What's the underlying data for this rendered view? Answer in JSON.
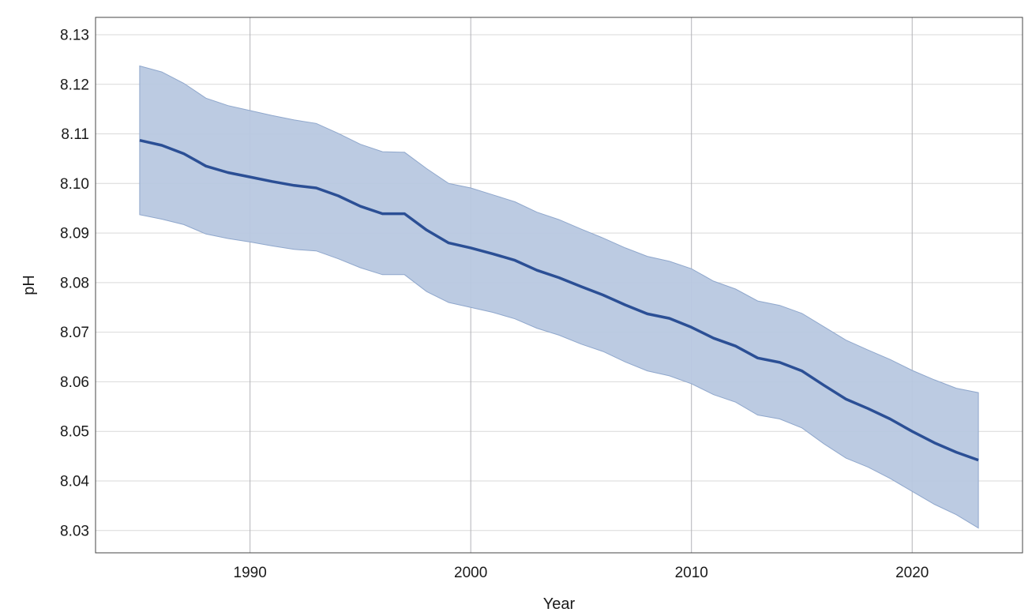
{
  "chart_data": {
    "type": "area",
    "title": "",
    "xlabel": "Year",
    "ylabel": "pH",
    "xlim": [
      1983,
      2025
    ],
    "ylim": [
      8.0255,
      8.1335
    ],
    "xticks": [
      1990,
      2000,
      2010,
      2020
    ],
    "yticks": [
      8.03,
      8.04,
      8.05,
      8.06,
      8.07,
      8.08,
      8.09,
      8.1,
      8.11,
      8.12,
      8.13
    ],
    "ytick_labels": [
      "8.03",
      "8.04",
      "8.05",
      "8.06",
      "8.07",
      "8.08",
      "8.09",
      "8.10",
      "8.11",
      "8.12",
      "8.13"
    ],
    "grid": true,
    "legend": "none",
    "colors": {
      "line": "#2b4f95",
      "band": "#b8c8e0",
      "band_edge": "#8fa7cc",
      "grid": "#d9d9d9",
      "vgrid": "#b3b3b8",
      "frame": "#444444"
    },
    "x": [
      1985,
      1986,
      1987,
      1988,
      1989,
      1990,
      1991,
      1992,
      1993,
      1994,
      1995,
      1996,
      1997,
      1998,
      1999,
      2000,
      2001,
      2002,
      2003,
      2004,
      2005,
      2006,
      2007,
      2008,
      2009,
      2010,
      2011,
      2012,
      2013,
      2014,
      2015,
      2016,
      2017,
      2018,
      2019,
      2020,
      2021,
      2022,
      2023
    ],
    "series": [
      {
        "values": [
          8.1087,
          8.1077,
          8.106,
          8.1035,
          8.1022,
          8.1013,
          8.1004,
          8.0996,
          8.0991,
          8.0975,
          8.0954,
          8.0939,
          8.0939,
          8.0906,
          8.088,
          8.087,
          8.0858,
          8.0845,
          8.0825,
          8.081,
          8.0792,
          8.0775,
          8.0755,
          8.0737,
          8.0728,
          8.071,
          8.0688,
          8.0672,
          8.0648,
          8.0639,
          8.0622,
          8.0593,
          8.0565,
          8.0546,
          8.0525,
          8.05,
          8.0477,
          8.0458,
          8.0442
        ],
        "lower": [
          8.0937,
          8.0928,
          8.0917,
          8.0898,
          8.0889,
          8.0882,
          8.0874,
          8.0867,
          8.0864,
          8.0848,
          8.083,
          8.0816,
          8.0816,
          8.0782,
          8.076,
          8.075,
          8.074,
          8.0727,
          8.0708,
          8.0694,
          8.0676,
          8.0661,
          8.064,
          8.0622,
          8.0612,
          8.0596,
          8.0574,
          8.0559,
          8.0533,
          8.0525,
          8.0507,
          8.0475,
          8.0446,
          8.0428,
          8.0405,
          8.0379,
          8.0353,
          8.0332,
          8.0305
        ],
        "upper": [
          8.1237,
          8.1225,
          8.1202,
          8.1172,
          8.1157,
          8.1147,
          8.1137,
          8.1128,
          8.1121,
          8.1101,
          8.1079,
          8.1064,
          8.1063,
          8.103,
          8.1,
          8.0991,
          8.0977,
          8.0963,
          8.0942,
          8.0927,
          8.0908,
          8.089,
          8.087,
          8.0853,
          8.0843,
          8.0828,
          8.0803,
          8.0787,
          8.0763,
          8.0754,
          8.0738,
          8.0711,
          8.0684,
          8.0664,
          8.0645,
          8.0623,
          8.0604,
          8.0587,
          8.0578
        ]
      }
    ]
  }
}
